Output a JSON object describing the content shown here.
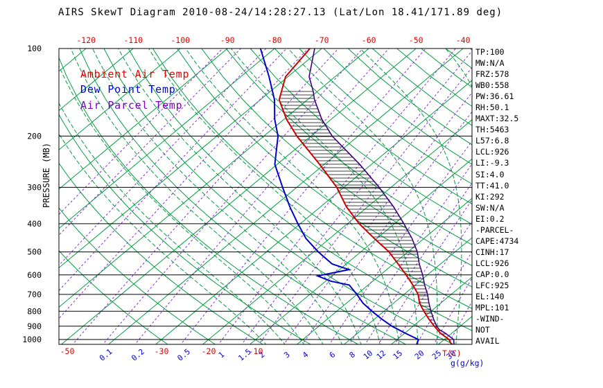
{
  "title": "AIRS SkewT Diagram 2010-08-24/14:28:27.13 (Lat/Lon 18.41/171.89 deg)",
  "legend": {
    "ambient": "Ambient Air Temp",
    "dew": "Dew Point Temp",
    "parcel": "Air Parcel Temp"
  },
  "axes": {
    "pressure_label": "PRESSURE (MB)",
    "temp_unit_label": "T(C)",
    "mixing_unit_label": "g(g/kg)"
  },
  "stats": [
    "TP:100",
    "MW:N/A",
    "FRZ:578",
    "WB0:558",
    "PW:36.61",
    "RH:50.1",
    "MAXT:32.5",
    "TH:5463",
    "L57:6.8",
    "LCL:926",
    "LI:-9.3",
    "SI:4.0",
    "TT:41.0",
    "KI:292",
    "SW:N/A",
    "EI:0.2",
    "-PARCEL-",
    "CAPE:4734",
    "CINH:17",
    "LCL:926",
    "CAP:0.0",
    "LFC:925",
    "EL:140",
    "MPL:101",
    "-WIND-",
    "NOT",
    "AVAIL"
  ],
  "colors": {
    "temp_curve": "#cc0000",
    "dew_curve": "#0000cc",
    "parcel_curve": "#3c0080",
    "isotherm_green": "#00a040",
    "mixing_purple": "#8a2be2",
    "axis_red": "#e60000",
    "axis_blue": "#0000e6",
    "grid_black": "#000000"
  },
  "chart_data": {
    "type": "line",
    "subtype": "skewt-log-p",
    "title": "AIRS SkewT Diagram 2010-08-24/14:28:27.13 (Lat/Lon 18.41/171.89 deg)",
    "y_axis": {
      "label": "PRESSURE (MB)",
      "scale": "log",
      "ticks_mb": [
        100,
        200,
        300,
        400,
        500,
        600,
        700,
        800,
        900,
        1000
      ],
      "range_mb": [
        100,
        1045
      ]
    },
    "x_axis": {
      "label": "T(C)",
      "top_ticks_c": [
        -120,
        -110,
        -100,
        -90,
        -80,
        -70,
        -60,
        -50,
        -40
      ],
      "bottom_ticks_c": [
        -50,
        -30,
        -20,
        -10
      ]
    },
    "mixing_ratio_labels_gkg": [
      0.1,
      0.2,
      0.5,
      1,
      1.5,
      2,
      3,
      4,
      6,
      8,
      10,
      12,
      15,
      20,
      25,
      30
    ],
    "background": {
      "isotherms_c": {
        "min": -130,
        "max": 40,
        "step": 10
      },
      "dry_adiabats_theta_k": {
        "min": 243,
        "max": 473,
        "step": 10
      },
      "moist_adiabats_start_c": {
        "min": -6,
        "max": 42,
        "step": 4
      },
      "mixing_ratio_lines_gkg": [
        0.001,
        0.002,
        0.005,
        0.01,
        0.02,
        0.05,
        0.1,
        0.2,
        0.5,
        1,
        1.5,
        2,
        3,
        4,
        6,
        8,
        10,
        12,
        15,
        20,
        25,
        30
      ]
    },
    "series": [
      {
        "name": "Ambient Air Temp",
        "points_mb_c": [
          [
            100,
            -72.5
          ],
          [
            125,
            -70.5
          ],
          [
            150,
            -66
          ],
          [
            175,
            -59.5
          ],
          [
            200,
            -53
          ],
          [
            250,
            -41
          ],
          [
            300,
            -31.5
          ],
          [
            350,
            -24.5
          ],
          [
            400,
            -17.5
          ],
          [
            450,
            -10.5
          ],
          [
            500,
            -4
          ],
          [
            550,
            1
          ],
          [
            600,
            5.5
          ],
          [
            650,
            9.5
          ],
          [
            700,
            13
          ],
          [
            750,
            15.5
          ],
          [
            800,
            18.5
          ],
          [
            850,
            21.5
          ],
          [
            900,
            24.5
          ],
          [
            950,
            27.5
          ],
          [
            1000,
            31
          ],
          [
            1045,
            33
          ]
        ]
      },
      {
        "name": "Dew Point Temp",
        "points_mb_c": [
          [
            100,
            -83
          ],
          [
            125,
            -74
          ],
          [
            150,
            -67
          ],
          [
            175,
            -62
          ],
          [
            200,
            -57
          ],
          [
            250,
            -50.5
          ],
          [
            300,
            -43
          ],
          [
            350,
            -36.5
          ],
          [
            400,
            -30.5
          ],
          [
            450,
            -25
          ],
          [
            500,
            -19
          ],
          [
            550,
            -13
          ],
          [
            575,
            -8
          ],
          [
            605,
            -13
          ],
          [
            630,
            -9
          ],
          [
            650,
            -4
          ],
          [
            700,
            0
          ],
          [
            750,
            3.5
          ],
          [
            800,
            7.5
          ],
          [
            850,
            11.5
          ],
          [
            900,
            15.5
          ],
          [
            950,
            20
          ],
          [
            1000,
            24.5
          ],
          [
            1045,
            25.5
          ]
        ]
      },
      {
        "name": "Air Parcel Temp",
        "points_mb_c": [
          [
            100,
            -71.5
          ],
          [
            125,
            -65.5
          ],
          [
            140,
            -61
          ],
          [
            150,
            -58.5
          ],
          [
            175,
            -52
          ],
          [
            200,
            -45.5
          ],
          [
            250,
            -32.5
          ],
          [
            300,
            -22.5
          ],
          [
            350,
            -14.5
          ],
          [
            400,
            -8
          ],
          [
            450,
            -2.5
          ],
          [
            500,
            2
          ],
          [
            550,
            5.5
          ],
          [
            600,
            9
          ],
          [
            650,
            12
          ],
          [
            700,
            15
          ],
          [
            750,
            17.5
          ],
          [
            800,
            20
          ],
          [
            850,
            22.5
          ],
          [
            900,
            25
          ],
          [
            926,
            26.5
          ],
          [
            950,
            28.5
          ],
          [
            1000,
            32
          ],
          [
            1045,
            33.5
          ]
        ]
      }
    ],
    "hatch_region": {
      "between": [
        "Ambient Air Temp",
        "Air Parcel Temp"
      ],
      "from_mb": 980,
      "to_mb": 140,
      "style": "horizontal-lines"
    }
  }
}
